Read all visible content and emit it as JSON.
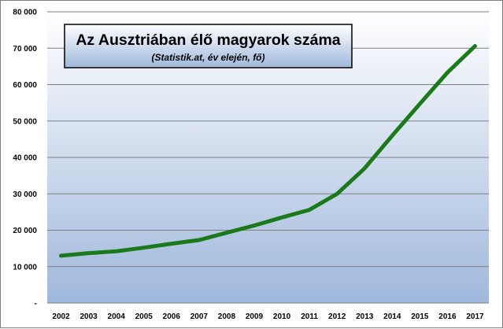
{
  "chart_data": {
    "type": "line",
    "title": "Az Ausztriában élő magyarok száma",
    "subtitle": "(Statistik.at, év elején, fő)",
    "categories": [
      "2002",
      "2003",
      "2004",
      "2005",
      "2006",
      "2007",
      "2008",
      "2009",
      "2010",
      "2011",
      "2012",
      "2013",
      "2014",
      "2015",
      "2016",
      "2017"
    ],
    "series": [
      {
        "values": [
          13000,
          13700,
          14200,
          15200,
          16300,
          17300,
          19300,
          21300,
          23500,
          25600,
          30000,
          37000,
          46000,
          54700,
          63300,
          70600
        ]
      }
    ],
    "ylim": [
      0,
      80000
    ],
    "y_ticks": [
      0,
      10000,
      20000,
      30000,
      40000,
      50000,
      60000,
      70000,
      80000
    ],
    "y_tick_labels": [
      "-",
      "10 000",
      "20 000",
      "30 000",
      "40 000",
      "50 000",
      "60 000",
      "70 000",
      "80 000"
    ],
    "grid": "horizontal",
    "legend": "none",
    "colors": {
      "line": "#1a7a1a",
      "grid": "#7f7f7f",
      "plot_bg_top": "#ffffff",
      "plot_bg_bottom": "#9fb8dc",
      "title_box_top": "#ffffff",
      "title_box_bottom": "#9fb8dc"
    }
  }
}
